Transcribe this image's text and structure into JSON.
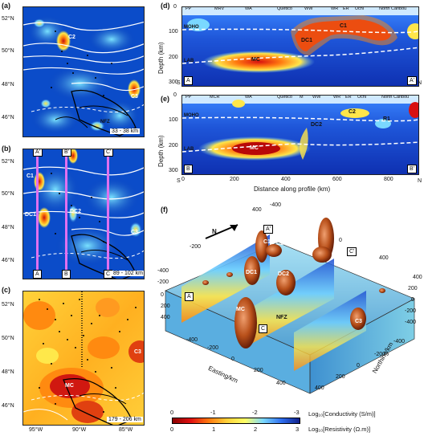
{
  "panels": {
    "a": {
      "label": "(a)",
      "depth": "33 - 38 km",
      "labels": [
        "C2",
        "C3",
        "NFZ"
      ],
      "lat_ticks": [
        "52°N",
        "50°N",
        "48°N",
        "46°N"
      ]
    },
    "b": {
      "label": "(b)",
      "depth": "89 - 102 km",
      "labels": [
        "C1",
        "DC2",
        "DC1",
        "C3"
      ],
      "lines_top": [
        "A'",
        "B'",
        "C'"
      ],
      "lines_bottom": [
        "A",
        "B",
        "C"
      ],
      "lat_ticks": [
        "52°N",
        "50°N",
        "48°N",
        "46°N"
      ]
    },
    "c": {
      "label": "(c)",
      "depth": "179 - 206 km",
      "labels": [
        "MC",
        "C3"
      ],
      "lat_ticks": [
        "52°N",
        "50°N",
        "48°N",
        "46°N"
      ],
      "lon_ticks": [
        "95°W",
        "90°W",
        "85°W"
      ]
    },
    "d": {
      "label": "(d)",
      "start": "A",
      "end": "A'",
      "s": "S",
      "n": "N",
      "provinces": [
        "PP",
        "MRV",
        "WA",
        "Quetico",
        "WW",
        "WR",
        "ER",
        "Uchi",
        "North Caribou"
      ],
      "labels": [
        "MOHO",
        "LAB",
        "MC",
        "DC1",
        "C1"
      ]
    },
    "e": {
      "label": "(e)",
      "start": "B",
      "end": "B'",
      "s": "S",
      "n": "N",
      "provinces": [
        "PP",
        "MCR",
        "WA",
        "Quetico",
        "M",
        "WW",
        "WR",
        "ER",
        "Uchi",
        "North Caribou"
      ],
      "labels": [
        "MOHO",
        "LAB",
        "MC",
        "DC2",
        "C2",
        "R1"
      ]
    },
    "f": {
      "label": "(f)",
      "north": "N",
      "labels": [
        "C1",
        "C2",
        "DC1",
        "DC2",
        "MC",
        "C3",
        "NFZ"
      ],
      "boxes": [
        "A",
        "A'",
        "C",
        "C'"
      ],
      "easting": "Easting/km",
      "northing": "Northing/km",
      "ticks_a": [
        "400",
        "0",
        "-400",
        "-200",
        "400"
      ],
      "ticks_b": [
        "-400",
        "-200",
        "0",
        "200",
        "400"
      ],
      "ticks_c": [
        "-400",
        "-200",
        "0",
        "200",
        "400"
      ],
      "ticks_d": [
        "400",
        "200",
        "0",
        "-200",
        "-400"
      ],
      "ticks_e": [
        "-400",
        "-200",
        "0",
        "200",
        "400"
      ]
    }
  },
  "sections": {
    "depth_label": "Depth (km)",
    "distance_label": "Distance along profile (km)",
    "depth_ticks": [
      "0",
      "100",
      "200",
      "300"
    ],
    "distance_ticks": [
      "0",
      "200",
      "400",
      "600",
      "800"
    ]
  },
  "colorbar": {
    "cond_ticks": [
      "0",
      "-1",
      "-2",
      "-3"
    ],
    "res_ticks": [
      "0",
      "1",
      "2",
      "3"
    ],
    "cond_label": "Log₁₀[Conductivity (S/m)]",
    "res_label": "Log₁₀[Resistivity (Ω.m)]"
  }
}
